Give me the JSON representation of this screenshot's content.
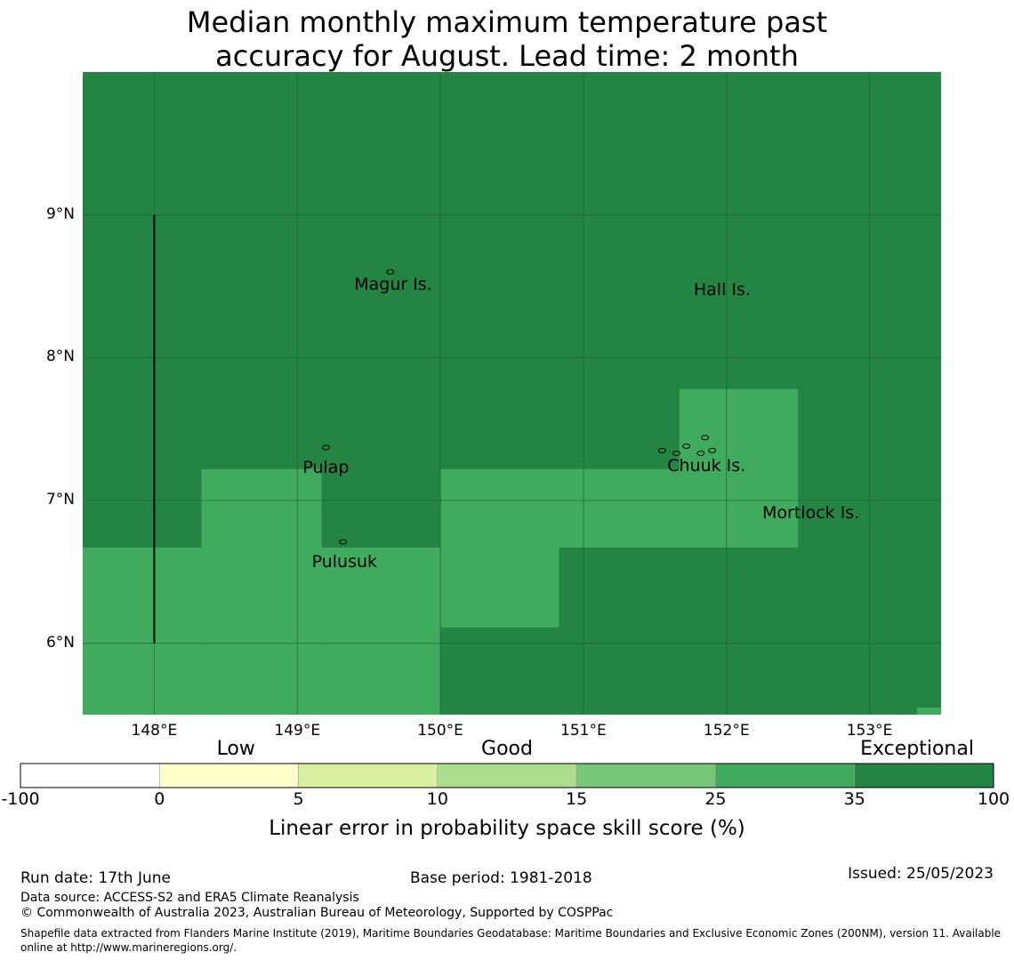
{
  "title": {
    "line1": "Median monthly maximum temperature past",
    "line2": "accuracy for August. Lead time: 2 month"
  },
  "map": {
    "lon_range": [
      147.5,
      153.5
    ],
    "lat_range": [
      5.5,
      10.0
    ],
    "lon_ticks": [
      148,
      149,
      150,
      151,
      152,
      153
    ],
    "lat_ticks": [
      6,
      7,
      8,
      9
    ],
    "lon_tick_labels": [
      "148°E",
      "149°E",
      "150°E",
      "151°E",
      "152°E",
      "153°E"
    ],
    "lat_tick_labels": [
      "6°N",
      "7°N",
      "8°N",
      "9°N"
    ],
    "gridlines": true,
    "colors": {
      "exceptional": "#238443",
      "very_good": "#41ab5d",
      "gridline": "#1a5e30",
      "boundary": "#000000"
    },
    "skill_regions": [
      {
        "category": "25-35",
        "lon": [
          147.5,
          148.33
        ],
        "lat": [
          5.5,
          6.67
        ]
      },
      {
        "category": "25-35",
        "lon": [
          148.33,
          149.17
        ],
        "lat": [
          5.5,
          7.22
        ]
      },
      {
        "category": "25-35",
        "lon": [
          149.17,
          150.0
        ],
        "lat": [
          5.5,
          6.67
        ]
      },
      {
        "category": "25-35",
        "lon": [
          150.0,
          150.83
        ],
        "lat": [
          6.11,
          7.22
        ]
      },
      {
        "category": "25-35",
        "lon": [
          150.83,
          151.67
        ],
        "lat": [
          6.67,
          7.22
        ]
      },
      {
        "category": "25-35",
        "lon": [
          151.67,
          152.5
        ],
        "lat": [
          6.67,
          7.78
        ]
      },
      {
        "category": "25-35",
        "lon": [
          153.33,
          153.5
        ],
        "lat": [
          5.5,
          5.55
        ]
      }
    ],
    "places": [
      {
        "name": "Magur Is.",
        "lon": 149.67,
        "lat": 8.5
      },
      {
        "name": "Hall Is.",
        "lon": 151.97,
        "lat": 8.46
      },
      {
        "name": "Pulap",
        "lon": 149.2,
        "lat": 7.22
      },
      {
        "name": "Chuuk Is.",
        "lon": 151.86,
        "lat": 7.23
      },
      {
        "name": "Mortlock Is.",
        "lon": 152.59,
        "lat": 6.9
      },
      {
        "name": "Pulusuk",
        "lon": 149.33,
        "lat": 6.56
      }
    ],
    "boundary_line": {
      "lon": 148.0,
      "lat": [
        6.0,
        9.0
      ]
    }
  },
  "colorbar": {
    "words": [
      "Low",
      "Good",
      "Exceptional"
    ],
    "ticks": [
      "-100",
      "0",
      "5",
      "10",
      "15",
      "25",
      "35",
      "100"
    ],
    "colors": [
      "#ffffff",
      "#ffffcc",
      "#d9f0a3",
      "#addd8e",
      "#78c679",
      "#41ab5d",
      "#238443"
    ],
    "label": "Linear error in probability space skill score (%)"
  },
  "footer": {
    "run_date": "Run date: 17th June",
    "base_period": "Base period: 1981-2018",
    "issued": "Issued: 25/05/2023",
    "data_source": "Data source: ACCESS-S2 and ERA5 Climate Reanalysis",
    "copyright": "© Commonwealth of Australia 2023, Australian Bureau of Meteorology, Supported by COSPPac",
    "shapefile": "Shapefile data extracted from Flanders Marine Institute (2019), Maritime Boundaries Geodatabase: Maritime Boundaries and Exclusive Economic Zones (200NM), version 11. Available online at http://www.marineregions.org/."
  }
}
